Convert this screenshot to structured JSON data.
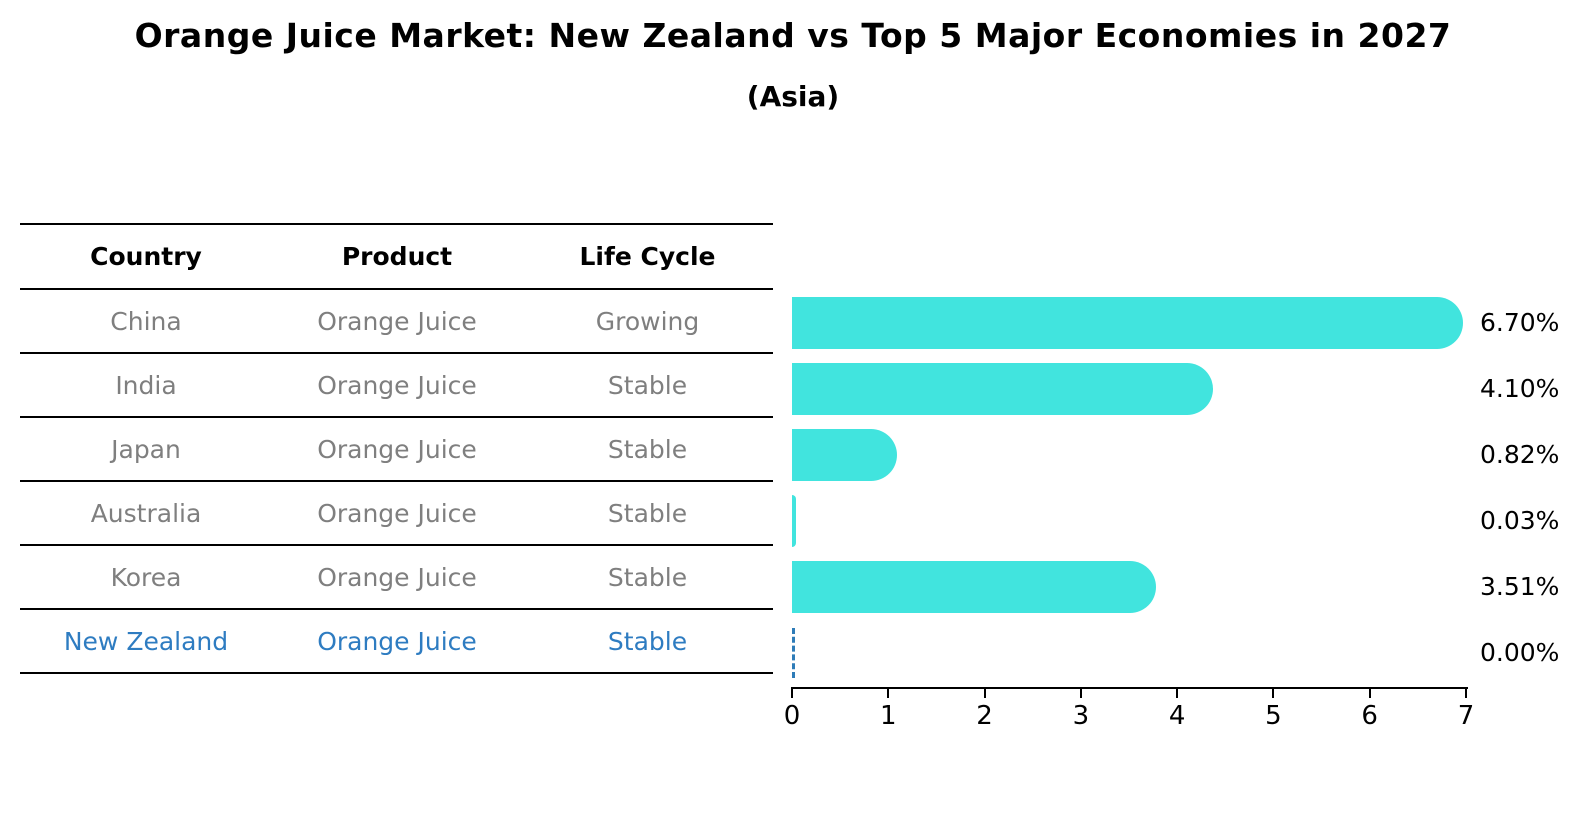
{
  "title": "Orange Juice Market: New Zealand vs Top 5 Major Economies in 2027",
  "subtitle": "(Asia)",
  "table": {
    "headers": {
      "country": "Country",
      "product": "Product",
      "life_cycle": "Life Cycle"
    },
    "rows": [
      {
        "country": "China",
        "product": "Orange Juice",
        "life_cycle": "Growing",
        "highlighted": false
      },
      {
        "country": "India",
        "product": "Orange Juice",
        "life_cycle": "Stable",
        "highlighted": false
      },
      {
        "country": "Japan",
        "product": "Orange Juice",
        "life_cycle": "Stable",
        "highlighted": false
      },
      {
        "country": "Australia",
        "product": "Orange Juice",
        "life_cycle": "Stable",
        "highlighted": false
      },
      {
        "country": "Korea",
        "product": "Orange Juice",
        "life_cycle": "Stable",
        "highlighted": false
      },
      {
        "country": "New Zealand",
        "product": "Orange Juice",
        "life_cycle": "Stable",
        "highlighted": true
      }
    ]
  },
  "chart_data": {
    "type": "bar",
    "orientation": "horizontal",
    "title": "Orange Juice Market: New Zealand vs Top 5 Major Economies in 2027",
    "subtitle": "(Asia)",
    "categories": [
      "China",
      "India",
      "Japan",
      "Australia",
      "Korea",
      "New Zealand"
    ],
    "values": [
      6.7,
      4.1,
      0.82,
      0.03,
      3.51,
      0.0
    ],
    "value_labels": [
      "6.70%",
      "4.10%",
      "0.82%",
      "0.03%",
      "3.51%",
      "0.00%"
    ],
    "xlabel": "",
    "ylabel": "",
    "xlim": [
      0,
      7
    ],
    "x_tick_labels": [
      "0",
      "1",
      "2",
      "3",
      "4",
      "5",
      "6",
      "7"
    ],
    "grid": false,
    "legend": "none",
    "zero_value_shown_as_dashed_line": true
  },
  "colors": {
    "bar": "#41e4de",
    "highlight_text": "#2e7cc1",
    "zero_marker": "#2e7cb8",
    "table_text": "#7f7f7f",
    "axis": "#000000"
  }
}
